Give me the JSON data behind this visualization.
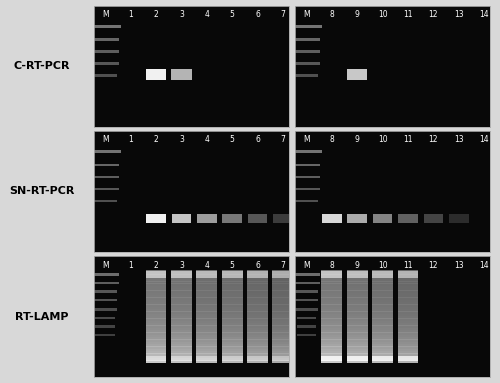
{
  "row_labels": [
    "C-RT-PCR",
    "SN-RT-PCR",
    "RT-LAMP"
  ],
  "left_labels": [
    [
      "M",
      "1",
      "2",
      "3",
      "4",
      "5",
      "6",
      "7"
    ],
    [
      "M",
      "1",
      "2",
      "3",
      "4",
      "5",
      "6",
      "7"
    ],
    [
      "M",
      "1",
      "2",
      "3",
      "4",
      "5",
      "6",
      "7"
    ]
  ],
  "right_labels": [
    [
      "M",
      "8",
      "9",
      "10",
      "11",
      "12",
      "13",
      "14"
    ],
    [
      "M",
      "8",
      "9",
      "10",
      "11",
      "12",
      "13",
      "14"
    ],
    [
      "M",
      "8",
      "9",
      "10",
      "11",
      "12",
      "13",
      "14"
    ]
  ],
  "fig_bg": "#d8d8d8",
  "gel_bg": "#080808",
  "white": "#ffffff",
  "light_gray": "#cccccc",
  "mid_gray": "#888888",
  "dark_gray": "#444444",
  "marker_gray": "#999999",
  "label_color": "#222222",
  "panel_border": "#aaaaaa",
  "row_label_fontsize": 8.0,
  "lane_label_fontsize": 5.5
}
